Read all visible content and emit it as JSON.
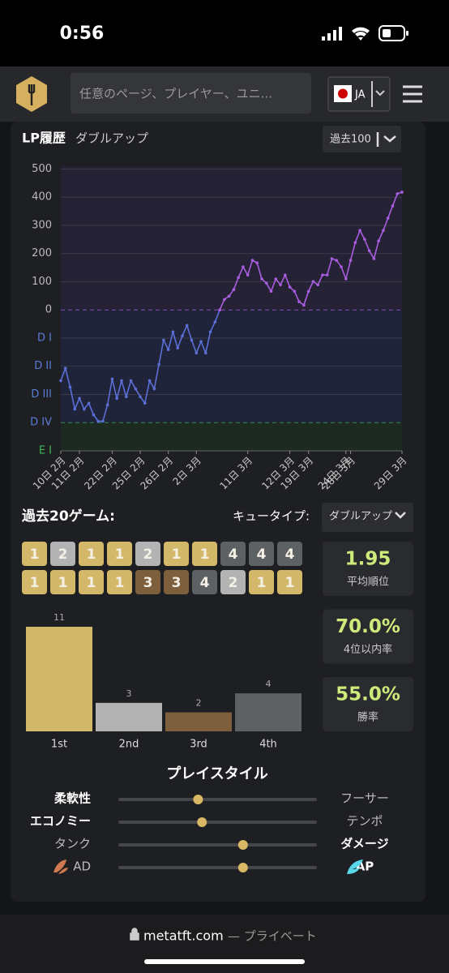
{
  "status": {
    "time": "0:56"
  },
  "header": {
    "search": "任意のページ、プレイヤー、ユニ...",
    "lang": "JA"
  },
  "lp": {
    "title": "LP履歴",
    "subtitle": "ダブルアップ",
    "range": "過去100"
  },
  "chart_data": [
    {
      "type": "line",
      "categories": [
        "10日 2月",
        null,
        null,
        null,
        "11日 2月",
        null,
        null,
        null,
        null,
        null,
        null,
        "22日 2月",
        null,
        null,
        null,
        null,
        null,
        "25日 2月",
        null,
        null,
        null,
        null,
        null,
        "26日 2月",
        null,
        null,
        null,
        null,
        null,
        "2日 3月",
        null,
        null,
        null,
        null,
        null,
        null,
        null,
        null,
        null,
        null,
        "11日 3月",
        null,
        null,
        null,
        null,
        null,
        null,
        null,
        null,
        "12日 3月",
        null,
        null,
        null,
        "19日 3月",
        null,
        null,
        null,
        null,
        null,
        null,
        null,
        "24日 3月",
        "28日 3月",
        null,
        null,
        null,
        null,
        null,
        null,
        null,
        null,
        null,
        null,
        "29日 3月"
      ],
      "series": [
        {
          "color": "#5b6fd6",
          "color_positive": "#a95de0",
          "values": [
            -251,
            -207,
            -274,
            -352,
            -314,
            -352,
            -331,
            -372,
            -395,
            -395,
            -337,
            -245,
            -314,
            -251,
            -308,
            -251,
            -280,
            -308,
            -331,
            -251,
            -280,
            -193,
            -107,
            -141,
            -78,
            -135,
            -92,
            -55,
            -107,
            -153,
            -112,
            -153,
            -78,
            -43,
            0,
            37,
            49,
            72,
            115,
            153,
            124,
            176,
            167,
            110,
            95,
            66,
            110,
            89,
            124,
            81,
            66,
            29,
            17,
            66,
            101,
            89,
            124,
            124,
            182,
            176,
            153,
            110,
            176,
            239,
            282,
            251,
            210,
            182,
            245,
            282,
            326,
            369,
            412,
            418
          ]
        }
      ],
      "ylim": [
        -500,
        510
      ],
      "yticks": [
        {
          "value": -500,
          "label": "E I"
        },
        {
          "value": -400,
          "label": "D IV"
        },
        {
          "value": -300,
          "label": "D III"
        },
        {
          "value": -200,
          "label": "D II"
        },
        {
          "value": -100,
          "label": "D I"
        },
        0,
        100,
        200,
        300,
        400,
        500
      ],
      "grid": true
    },
    {
      "type": "bar",
      "categories": [
        "1st",
        "2nd",
        "3rd",
        "4th"
      ],
      "values": [
        11,
        3,
        2,
        4
      ],
      "colors": [
        "#d4b86a",
        "#b3b3b3",
        "#7d5f3e",
        "#5d6164"
      ],
      "ylim": [
        0,
        11
      ]
    }
  ],
  "recent": {
    "title": "過去20ゲーム:",
    "queue_label": "キュータイプ:",
    "queue": "ダブルアップ",
    "placements": [
      1,
      2,
      1,
      1,
      2,
      1,
      1,
      4,
      4,
      4,
      1,
      1,
      1,
      1,
      3,
      3,
      4,
      2,
      1,
      1
    ]
  },
  "stats": [
    {
      "value": "1.95",
      "label": "平均順位"
    },
    {
      "value": "70.0%",
      "label": "4位以内率"
    },
    {
      "value": "55.0%",
      "label": "勝率"
    }
  ],
  "playstyle": {
    "title": "プレイスタイル",
    "rows": [
      {
        "left": "柔軟性",
        "right": "フーサー",
        "value": 40
      },
      {
        "left": "エコノミー",
        "right": "テンポ",
        "value": 42
      },
      {
        "left": "タンク",
        "right": "ダメージ",
        "value": 63
      },
      {
        "left": "AD",
        "right": "AP",
        "value": 63
      }
    ]
  },
  "footer": {
    "url": "metatft.com",
    "note": "— プライベート"
  }
}
